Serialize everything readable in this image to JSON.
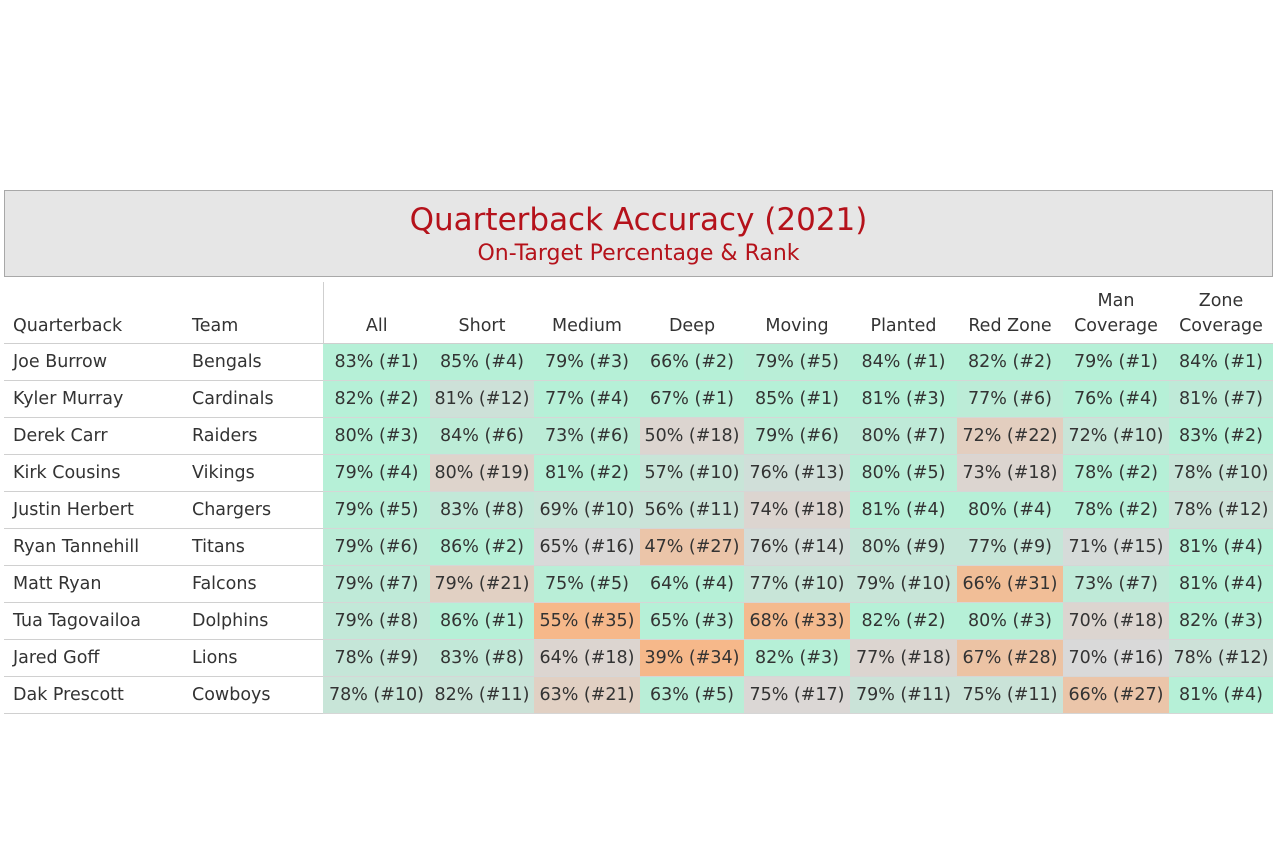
{
  "chart_data": {
    "type": "table",
    "title": "Quarterback Accuracy (2021)",
    "subtitle": "On-Target Percentage & Rank",
    "columns": [
      "Quarterback",
      "Team",
      "All",
      "Short",
      "Medium",
      "Deep",
      "Moving",
      "Planted",
      "Red Zone",
      "Man\nCoverage",
      "Zone\nCoverage"
    ],
    "color_scale": {
      "best": "#b6f0d7",
      "middle": "#d9d9d9",
      "worst": "#f6b88a"
    },
    "rows": [
      {
        "quarterback": "Joe Burrow",
        "team": "Bengals",
        "cells": [
          "83% (#1)",
          "85% (#4)",
          "79% (#3)",
          "66% (#2)",
          "79% (#5)",
          "84% (#1)",
          "82% (#2)",
          "79% (#1)",
          "84% (#1)"
        ]
      },
      {
        "quarterback": "Kyler Murray",
        "team": "Cardinals",
        "cells": [
          "82% (#2)",
          "81% (#12)",
          "77% (#4)",
          "67% (#1)",
          "85% (#1)",
          "81% (#3)",
          "77% (#6)",
          "76% (#4)",
          "81% (#7)"
        ]
      },
      {
        "quarterback": "Derek Carr",
        "team": "Raiders",
        "cells": [
          "80% (#3)",
          "84% (#6)",
          "73% (#6)",
          "50% (#18)",
          "79% (#6)",
          "80% (#7)",
          "72% (#22)",
          "72% (#10)",
          "83% (#2)"
        ]
      },
      {
        "quarterback": "Kirk Cousins",
        "team": "Vikings",
        "cells": [
          "79% (#4)",
          "80% (#19)",
          "81% (#2)",
          "57% (#10)",
          "76% (#13)",
          "80% (#5)",
          "73% (#18)",
          "78% (#2)",
          "78% (#10)"
        ]
      },
      {
        "quarterback": "Justin Herbert",
        "team": "Chargers",
        "cells": [
          "79% (#5)",
          "83% (#8)",
          "69% (#10)",
          "56% (#11)",
          "74% (#18)",
          "81% (#4)",
          "80% (#4)",
          "78% (#2)",
          "78% (#12)"
        ]
      },
      {
        "quarterback": "Ryan Tannehill",
        "team": "Titans",
        "cells": [
          "79% (#6)",
          "86% (#2)",
          "65% (#16)",
          "47% (#27)",
          "76% (#14)",
          "80% (#9)",
          "77% (#9)",
          "71% (#15)",
          "81% (#4)"
        ]
      },
      {
        "quarterback": "Matt Ryan",
        "team": "Falcons",
        "cells": [
          "79% (#7)",
          "79% (#21)",
          "75% (#5)",
          "64% (#4)",
          "77% (#10)",
          "79% (#10)",
          "66% (#31)",
          "73% (#7)",
          "81% (#4)"
        ]
      },
      {
        "quarterback": "Tua Tagovailoa",
        "team": "Dolphins",
        "cells": [
          "79% (#8)",
          "86% (#1)",
          "55% (#35)",
          "65% (#3)",
          "68% (#33)",
          "82% (#2)",
          "80% (#3)",
          "70% (#18)",
          "82% (#3)"
        ]
      },
      {
        "quarterback": "Jared Goff",
        "team": "Lions",
        "cells": [
          "78% (#9)",
          "83% (#8)",
          "64% (#18)",
          "39% (#34)",
          "82% (#3)",
          "77% (#18)",
          "67% (#28)",
          "70% (#16)",
          "78% (#12)"
        ]
      },
      {
        "quarterback": "Dak Prescott",
        "team": "Cowboys",
        "cells": [
          "78% (#10)",
          "82% (#11)",
          "63% (#21)",
          "63% (#5)",
          "75% (#17)",
          "79% (#11)",
          "75% (#11)",
          "66% (#27)",
          "81% (#4)"
        ]
      }
    ]
  }
}
